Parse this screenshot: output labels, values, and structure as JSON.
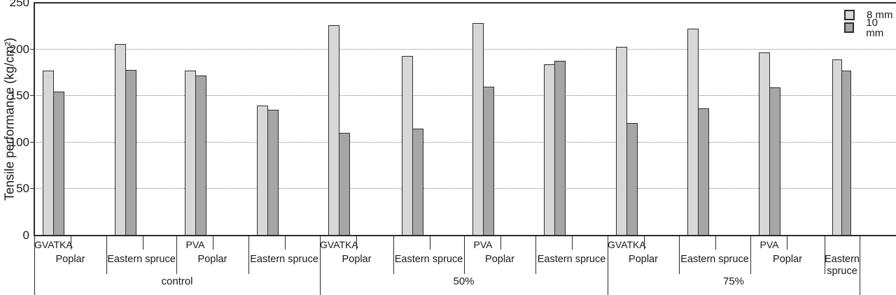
{
  "chart_data": {
    "type": "bar",
    "title": "",
    "ylabel": "Tensile performance (kg/cm²)",
    "xlabel": "",
    "ylim": [
      0,
      250
    ],
    "yticks": [
      0,
      50,
      100,
      150,
      200,
      250
    ],
    "grid": "horizontal dotted lines at 50, 100, 150, 200",
    "legend_position": "top-right",
    "series_names": [
      "8 mm",
      "10 mm"
    ],
    "series_colors": [
      "#d7d7d7",
      "#a6a6a6"
    ],
    "bar_border_color": "#2e2e2e",
    "conditions": [
      {
        "label": "control",
        "adhesives": [
          {
            "label": "GVATKA",
            "woods": [
              {
                "label": "Poplar",
                "values": [
                  177,
                  155
                ]
              },
              {
                "label": "Eastern spruce",
                "values": [
                  206,
                  178
                ]
              }
            ]
          },
          {
            "label": "PVA",
            "woods": [
              {
                "label": "Poplar",
                "values": [
                  177,
                  172
                ]
              },
              {
                "label": "Eastern spruce",
                "values": [
                  140,
                  135
                ]
              }
            ]
          }
        ]
      },
      {
        "label": "50%",
        "adhesives": [
          {
            "label": "GVATKA",
            "woods": [
              {
                "label": "Poplar",
                "values": [
                  226,
                  110
                ]
              },
              {
                "label": "Eastern spruce",
                "values": [
                  193,
                  115
                ]
              }
            ]
          },
          {
            "label": "PVA",
            "woods": [
              {
                "label": "Poplar",
                "values": [
                  228,
                  160
                ]
              },
              {
                "label": "Eastern spruce",
                "values": [
                  184,
                  188
                ]
              }
            ]
          }
        ]
      },
      {
        "label": "75%",
        "adhesives": [
          {
            "label": "GVATKA",
            "woods": [
              {
                "label": "Poplar",
                "values": [
                  203,
                  121
                ]
              },
              {
                "label": "Eastern spruce",
                "values": [
                  222,
                  137
                ]
              }
            ]
          },
          {
            "label": "PVA",
            "woods": [
              {
                "label": "Poplar",
                "values": [
                  197,
                  159
                ]
              },
              {
                "label": "Eastern spruce",
                "values": [
                  189,
                  177
                ]
              }
            ]
          }
        ]
      }
    ]
  }
}
